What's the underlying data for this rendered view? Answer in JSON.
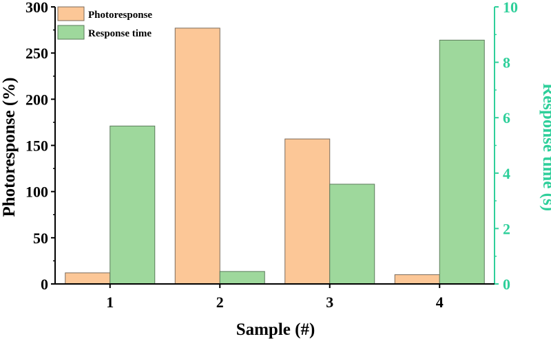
{
  "chart_data": {
    "type": "bar",
    "categories": [
      "1",
      "2",
      "3",
      "4"
    ],
    "xlabel": "Sample (#)",
    "series": [
      {
        "name": "Photoresponse",
        "axis": "left",
        "values": [
          12,
          277,
          157,
          10
        ],
        "color": "#fcc797",
        "edge": "#7a6a5a"
      },
      {
        "name": "Response time",
        "axis": "right",
        "values": [
          5.7,
          0.45,
          3.6,
          8.8
        ],
        "color": "#9ed89c",
        "edge": "#5a7a5a"
      }
    ],
    "y_left": {
      "label": "Photoresponse (%)",
      "range": [
        0,
        300
      ],
      "ticks": [
        "0",
        "50",
        "100",
        "150",
        "200",
        "250",
        "300"
      ],
      "color": "#000000"
    },
    "y_right": {
      "label": "Response time (s)",
      "range": [
        0,
        10
      ],
      "ticks": [
        "0",
        "2",
        "4",
        "6",
        "8",
        "10"
      ],
      "color": "#2ecf9a"
    },
    "legend_position": "top-left",
    "grid": false
  }
}
